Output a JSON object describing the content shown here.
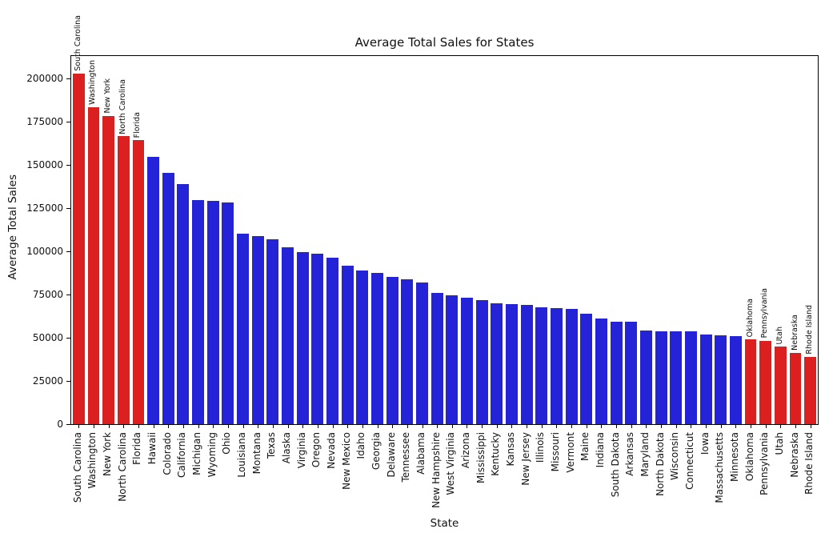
{
  "chart_data": {
    "type": "bar",
    "title": "Average Total Sales for States",
    "xlabel": "State",
    "ylabel": "Average Total Sales",
    "ylim": [
      0,
      213000
    ],
    "yticks": [
      0,
      25000,
      50000,
      75000,
      100000,
      125000,
      150000,
      175000,
      200000
    ],
    "grid": false,
    "legend": null,
    "categories": [
      "South Carolina",
      "Washington",
      "New York",
      "North Carolina",
      "Florida",
      "Hawaii",
      "Colorado",
      "California",
      "Michigan",
      "Wyoming",
      "Ohio",
      "Louisiana",
      "Montana",
      "Texas",
      "Alaska",
      "Virginia",
      "Oregon",
      "Nevada",
      "New Mexico",
      "Idaho",
      "Georgia",
      "Delaware",
      "Tennessee",
      "Alabama",
      "New Hampshire",
      "West Virginia",
      "Arizona",
      "Mississippi",
      "Kentucky",
      "Kansas",
      "New Jersey",
      "Illinois",
      "Missouri",
      "Vermont",
      "Maine",
      "Indiana",
      "South Dakota",
      "Arkansas",
      "Maryland",
      "North Dakota",
      "Wisconsin",
      "Connecticut",
      "Iowa",
      "Massachusetts",
      "Minnesota",
      "Oklahoma",
      "Pennsylvania",
      "Utah",
      "Nebraska",
      "Rhode Island"
    ],
    "values": [
      203000,
      183400,
      178400,
      166600,
      164400,
      154700,
      145500,
      139100,
      129500,
      129000,
      128300,
      110200,
      108900,
      107200,
      102500,
      99600,
      98700,
      96200,
      91600,
      89100,
      87600,
      85300,
      83600,
      81800,
      75800,
      74400,
      73100,
      71900,
      69900,
      69400,
      69000,
      67800,
      67300,
      66500,
      63900,
      61300,
      59400,
      59100,
      54400,
      53700,
      53600,
      53600,
      51700,
      51300,
      51100,
      49000,
      48200,
      44800,
      41300,
      39100
    ],
    "highlighted_categories": [
      "South Carolina",
      "Washington",
      "New York",
      "North Carolina",
      "Florida",
      "Oklahoma",
      "Pennsylvania",
      "Utah",
      "Nebraska",
      "Rhode Island"
    ],
    "annotation_note": "highlighted bars are labeled with their state name rotated above the bar",
    "colors": {
      "highlight": "#dc2020",
      "normal": "#2423d8",
      "axis": "#000000",
      "text": "#111111",
      "background": "#ffffff"
    }
  }
}
